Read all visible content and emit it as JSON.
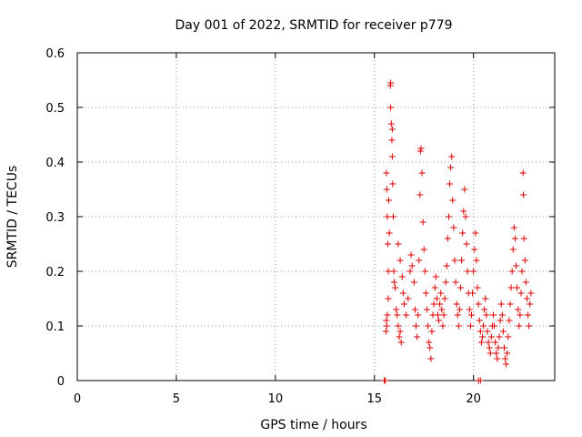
{
  "chart_data": {
    "type": "scatter",
    "title": "Day 001 of 2022, SRMTID for receiver p779",
    "xlabel": "GPS time / hours",
    "ylabel": "SRMTID / TECUs",
    "xlim": [
      0,
      24.1
    ],
    "ylim": [
      0,
      0.6
    ],
    "xticks": [
      0,
      5,
      10,
      15,
      20
    ],
    "yticks": [
      0,
      0.1,
      0.2,
      0.3,
      0.4,
      0.5,
      0.6
    ],
    "xtick_labels": [
      "0",
      "5",
      "10",
      "15",
      "20"
    ],
    "ytick_labels": [
      "0",
      "0.1",
      "0.2",
      "0.3",
      "0.4",
      "0.5",
      "0.6"
    ],
    "grid": true,
    "legend": "none",
    "marker": "plus",
    "series": [
      {
        "name": "SRMTID",
        "color": "#dd0000",
        "points": [
          [
            15.5,
            0.0
          ],
          [
            15.55,
            0.0
          ],
          [
            20.25,
            0.0
          ],
          [
            20.35,
            0.0
          ],
          [
            15.6,
            0.38
          ],
          [
            15.62,
            0.35
          ],
          [
            15.65,
            0.3
          ],
          [
            15.68,
            0.25
          ],
          [
            15.7,
            0.2
          ],
          [
            15.72,
            0.33
          ],
          [
            15.75,
            0.27
          ],
          [
            15.6,
            0.11
          ],
          [
            15.62,
            0.1
          ],
          [
            15.58,
            0.09
          ],
          [
            15.65,
            0.12
          ],
          [
            15.7,
            0.15
          ],
          [
            15.8,
            0.54
          ],
          [
            15.82,
            0.5
          ],
          [
            15.85,
            0.47
          ],
          [
            15.88,
            0.44
          ],
          [
            15.9,
            0.41
          ],
          [
            15.92,
            0.36
          ],
          [
            15.95,
            0.3
          ],
          [
            15.82,
            0.545
          ],
          [
            15.9,
            0.46
          ],
          [
            15.98,
            0.2
          ],
          [
            16.0,
            0.18
          ],
          [
            16.05,
            0.17
          ],
          [
            16.1,
            0.13
          ],
          [
            16.15,
            0.12
          ],
          [
            16.2,
            0.1
          ],
          [
            16.25,
            0.08
          ],
          [
            16.3,
            0.09
          ],
          [
            16.35,
            0.07
          ],
          [
            16.2,
            0.25
          ],
          [
            16.3,
            0.22
          ],
          [
            16.4,
            0.19
          ],
          [
            16.45,
            0.16
          ],
          [
            16.5,
            0.14
          ],
          [
            16.6,
            0.12
          ],
          [
            16.7,
            0.15
          ],
          [
            16.8,
            0.2
          ],
          [
            16.85,
            0.23
          ],
          [
            16.9,
            0.21
          ],
          [
            17.0,
            0.18
          ],
          [
            17.05,
            0.13
          ],
          [
            17.1,
            0.1
          ],
          [
            17.15,
            0.08
          ],
          [
            17.2,
            0.12
          ],
          [
            17.25,
            0.22
          ],
          [
            17.3,
            0.34
          ],
          [
            17.32,
            0.42
          ],
          [
            17.35,
            0.425
          ],
          [
            17.4,
            0.38
          ],
          [
            17.45,
            0.29
          ],
          [
            17.5,
            0.24
          ],
          [
            17.55,
            0.2
          ],
          [
            17.6,
            0.16
          ],
          [
            17.65,
            0.13
          ],
          [
            17.7,
            0.1
          ],
          [
            17.75,
            0.07
          ],
          [
            17.8,
            0.06
          ],
          [
            17.85,
            0.04
          ],
          [
            17.9,
            0.09
          ],
          [
            17.95,
            0.12
          ],
          [
            18.0,
            0.14
          ],
          [
            18.05,
            0.17
          ],
          [
            18.1,
            0.19
          ],
          [
            18.15,
            0.15
          ],
          [
            18.2,
            0.12
          ],
          [
            18.25,
            0.11
          ],
          [
            18.3,
            0.14
          ],
          [
            18.35,
            0.16
          ],
          [
            18.4,
            0.13
          ],
          [
            18.45,
            0.1
          ],
          [
            18.5,
            0.12
          ],
          [
            18.55,
            0.15
          ],
          [
            18.6,
            0.18
          ],
          [
            18.65,
            0.21
          ],
          [
            18.7,
            0.26
          ],
          [
            18.75,
            0.3
          ],
          [
            18.8,
            0.36
          ],
          [
            18.85,
            0.39
          ],
          [
            18.9,
            0.41
          ],
          [
            18.95,
            0.33
          ],
          [
            19.0,
            0.28
          ],
          [
            19.05,
            0.22
          ],
          [
            19.1,
            0.18
          ],
          [
            19.15,
            0.14
          ],
          [
            19.2,
            0.12
          ],
          [
            19.25,
            0.1
          ],
          [
            19.3,
            0.13
          ],
          [
            19.35,
            0.17
          ],
          [
            19.4,
            0.22
          ],
          [
            19.45,
            0.27
          ],
          [
            19.5,
            0.31
          ],
          [
            19.55,
            0.35
          ],
          [
            19.6,
            0.3
          ],
          [
            19.65,
            0.25
          ],
          [
            19.7,
            0.2
          ],
          [
            19.75,
            0.16
          ],
          [
            19.8,
            0.13
          ],
          [
            19.85,
            0.1
          ],
          [
            19.9,
            0.12
          ],
          [
            19.95,
            0.16
          ],
          [
            20.0,
            0.2
          ],
          [
            20.05,
            0.24
          ],
          [
            20.1,
            0.27
          ],
          [
            20.15,
            0.22
          ],
          [
            20.2,
            0.17
          ],
          [
            20.25,
            0.14
          ],
          [
            20.3,
            0.11
          ],
          [
            20.35,
            0.09
          ],
          [
            20.4,
            0.07
          ],
          [
            20.45,
            0.08
          ],
          [
            20.5,
            0.1
          ],
          [
            20.55,
            0.13
          ],
          [
            20.6,
            0.15
          ],
          [
            20.65,
            0.12
          ],
          [
            20.7,
            0.09
          ],
          [
            20.75,
            0.07
          ],
          [
            20.8,
            0.06
          ],
          [
            20.85,
            0.05
          ],
          [
            20.9,
            0.08
          ],
          [
            20.95,
            0.1
          ],
          [
            21.0,
            0.12
          ],
          [
            21.05,
            0.1
          ],
          [
            21.1,
            0.07
          ],
          [
            21.15,
            0.05
          ],
          [
            21.2,
            0.04
          ],
          [
            21.25,
            0.06
          ],
          [
            21.3,
            0.08
          ],
          [
            21.35,
            0.11
          ],
          [
            21.4,
            0.14
          ],
          [
            21.45,
            0.12
          ],
          [
            21.5,
            0.09
          ],
          [
            21.55,
            0.06
          ],
          [
            21.6,
            0.04
          ],
          [
            21.65,
            0.03
          ],
          [
            21.7,
            0.05
          ],
          [
            21.75,
            0.08
          ],
          [
            21.8,
            0.11
          ],
          [
            21.85,
            0.14
          ],
          [
            21.9,
            0.17
          ],
          [
            21.95,
            0.2
          ],
          [
            22.0,
            0.24
          ],
          [
            22.05,
            0.28
          ],
          [
            22.1,
            0.26
          ],
          [
            22.15,
            0.21
          ],
          [
            22.2,
            0.17
          ],
          [
            22.25,
            0.13
          ],
          [
            22.3,
            0.1
          ],
          [
            22.35,
            0.12
          ],
          [
            22.4,
            0.16
          ],
          [
            22.45,
            0.2
          ],
          [
            22.5,
            0.38
          ],
          [
            22.52,
            0.34
          ],
          [
            22.55,
            0.26
          ],
          [
            22.6,
            0.22
          ],
          [
            22.65,
            0.18
          ],
          [
            22.7,
            0.15
          ],
          [
            22.75,
            0.12
          ],
          [
            22.8,
            0.1
          ],
          [
            22.85,
            0.14
          ],
          [
            22.9,
            0.16
          ]
        ]
      }
    ]
  }
}
